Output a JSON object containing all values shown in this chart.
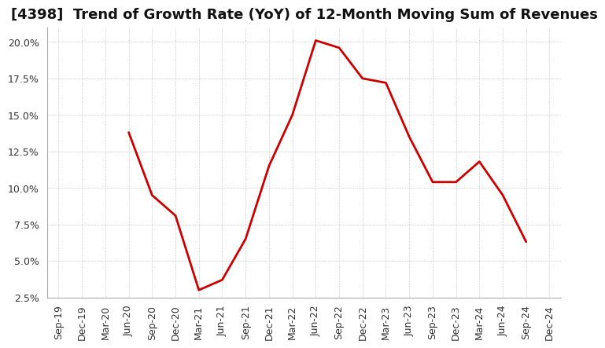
{
  "title": "[4398]  Trend of Growth Rate (YoY) of 12-Month Moving Sum of Revenues",
  "x_labels": [
    "Sep-19",
    "Dec-19",
    "Mar-20",
    "Jun-20",
    "Sep-20",
    "Dec-20",
    "Mar-21",
    "Jun-21",
    "Sep-21",
    "Dec-21",
    "Mar-22",
    "Jun-22",
    "Sep-22",
    "Dec-22",
    "Mar-23",
    "Jun-23",
    "Sep-23",
    "Dec-23",
    "Mar-24",
    "Jun-24",
    "Sep-24",
    "Dec-24"
  ],
  "y_values": [
    null,
    null,
    null,
    13.8,
    9.5,
    8.1,
    3.0,
    3.7,
    6.5,
    11.5,
    15.0,
    20.1,
    19.6,
    17.5,
    17.2,
    13.5,
    10.4,
    10.4,
    11.8,
    9.5,
    6.3,
    null
  ],
  "line_color": "#cc0000",
  "line_width": 2.0,
  "ylim": [
    2.5,
    21.0
  ],
  "yticks": [
    2.5,
    5.0,
    7.5,
    10.0,
    12.5,
    15.0,
    17.5,
    20.0
  ],
  "background_color": "#ffffff",
  "plot_bg_color": "#ffffff",
  "grid_color": "#aaaaaa",
  "title_fontsize": 13,
  "tick_fontsize": 9
}
